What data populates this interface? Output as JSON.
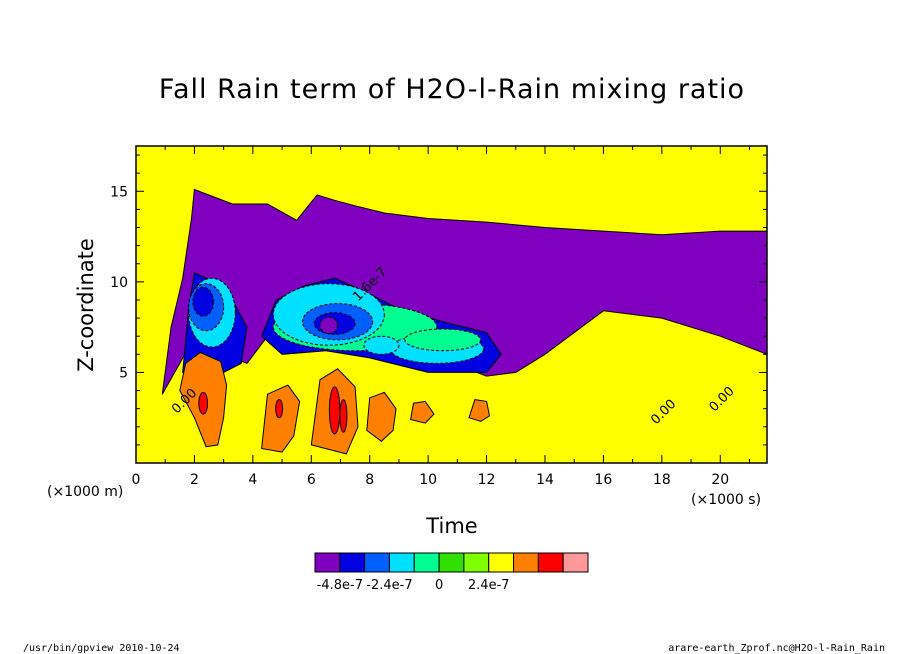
{
  "chart_data": {
    "type": "heatmap",
    "title": "Fall Rain term of H2O-l-Rain mixing ratio",
    "xlabel": "Time",
    "ylabel": "Z-coordinate",
    "x_unit": "(×1000 s)",
    "y_unit": "(×1000 m)",
    "xlim": [
      0,
      21.6
    ],
    "ylim": [
      0,
      17.5
    ],
    "x_ticks": [
      0,
      2,
      4,
      6,
      8,
      10,
      12,
      14,
      16,
      18,
      20
    ],
    "y_ticks": [
      5,
      10,
      15
    ],
    "colorbar": {
      "colors": [
        "#8000c0",
        "#0000e0",
        "#0060ff",
        "#00e0ff",
        "#00ff90",
        "#30e000",
        "#80ff00",
        "#ffff00",
        "#ff8000",
        "#ff0000",
        "#ff9898"
      ],
      "labels": [
        "-4.8e-7",
        "-2.4e-7",
        "0",
        "2.4e-7"
      ],
      "label_values": [
        -4.8e-07,
        -2.4e-07,
        0,
        2.4e-07
      ],
      "min": -6e-07,
      "step": 1.2e-07
    },
    "contour_labels": [
      "1.6e-7",
      "0.00",
      "0.00",
      "0.00"
    ],
    "regions": [
      {
        "level": 0,
        "shape": "polygon",
        "points": [
          [
            0.9,
            3.8
          ],
          [
            1.2,
            7.5
          ],
          [
            1.6,
            10.2
          ],
          [
            1.9,
            13.5
          ],
          [
            2.0,
            15.1
          ],
          [
            3.3,
            14.3
          ],
          [
            4.5,
            14.3
          ],
          [
            5.5,
            13.4
          ],
          [
            6.2,
            14.8
          ],
          [
            6.8,
            14.5
          ],
          [
            7.5,
            14.2
          ],
          [
            8.5,
            13.8
          ],
          [
            10,
            13.5
          ],
          [
            12,
            13.3
          ],
          [
            14,
            13.0
          ],
          [
            16,
            12.8
          ],
          [
            18,
            12.6
          ],
          [
            20,
            12.8
          ],
          [
            21.6,
            12.8
          ],
          [
            21.6,
            6.0
          ],
          [
            20,
            7.0
          ],
          [
            18,
            8.0
          ],
          [
            16,
            8.4
          ],
          [
            14,
            6.0
          ],
          [
            13,
            5.0
          ],
          [
            12,
            4.8
          ],
          [
            10,
            6.0
          ],
          [
            8,
            7.0
          ],
          [
            6.5,
            8.5
          ],
          [
            5.5,
            7.5
          ],
          [
            4.5,
            7.0
          ],
          [
            3.8,
            5.5
          ],
          [
            3.0,
            6.0
          ],
          [
            2.0,
            7.0
          ],
          [
            1.5,
            5.5
          ]
        ]
      },
      {
        "level": 1,
        "shape": "polygon",
        "points": [
          [
            1.6,
            5.0
          ],
          [
            1.8,
            8.5
          ],
          [
            2.0,
            10.5
          ],
          [
            2.7,
            10.0
          ],
          [
            3.3,
            9.0
          ],
          [
            3.8,
            7.5
          ],
          [
            3.6,
            5.5
          ],
          [
            3.0,
            5.0
          ],
          [
            2.2,
            4.5
          ]
        ]
      },
      {
        "level": 1,
        "shape": "polygon",
        "points": [
          [
            4.3,
            7.0
          ],
          [
            4.8,
            9.0
          ],
          [
            5.8,
            9.8
          ],
          [
            6.8,
            10.2
          ],
          [
            7.8,
            9.5
          ],
          [
            9,
            8.5
          ],
          [
            10.5,
            7.8
          ],
          [
            12,
            7.2
          ],
          [
            12.5,
            6.0
          ],
          [
            12,
            5.0
          ],
          [
            10,
            5.0
          ],
          [
            8,
            5.8
          ],
          [
            6.5,
            6.2
          ],
          [
            5.0,
            6.0
          ]
        ]
      },
      {
        "level": 3,
        "shape": "ellipse",
        "cx": 2.6,
        "cy": 8.3,
        "rx": 0.8,
        "ry": 1.9
      },
      {
        "level": 4,
        "shape": "ellipse",
        "cx": 7.5,
        "cy": 7.5,
        "rx": 2.8,
        "ry": 1.3
      },
      {
        "level": 3,
        "shape": "ellipse",
        "cx": 10.3,
        "cy": 6.3,
        "rx": 1.6,
        "ry": 0.8
      },
      {
        "level": 4,
        "shape": "ellipse",
        "cx": 10.5,
        "cy": 6.8,
        "rx": 1.3,
        "ry": 0.6
      },
      {
        "level": 3,
        "shape": "ellipse",
        "cx": 6.6,
        "cy": 8.2,
        "rx": 1.9,
        "ry": 1.7
      },
      {
        "level": 2,
        "shape": "ellipse",
        "cx": 2.4,
        "cy": 8.6,
        "rx": 0.6,
        "ry": 1.3
      },
      {
        "level": 2,
        "shape": "ellipse",
        "cx": 6.9,
        "cy": 7.8,
        "rx": 1.2,
        "ry": 1.0
      },
      {
        "level": 1,
        "shape": "ellipse",
        "cx": 2.3,
        "cy": 8.9,
        "rx": 0.35,
        "ry": 0.8
      },
      {
        "level": 1,
        "shape": "ellipse",
        "cx": 6.8,
        "cy": 7.7,
        "rx": 0.7,
        "ry": 0.6
      },
      {
        "level": 0,
        "shape": "ellipse",
        "cx": 6.6,
        "cy": 7.6,
        "rx": 0.3,
        "ry": 0.45
      },
      {
        "level": 3,
        "shape": "ellipse",
        "cx": 8.4,
        "cy": 6.5,
        "rx": 0.6,
        "ry": 0.5
      },
      {
        "level": 8,
        "shape": "polygon",
        "points": [
          [
            1.5,
            4.0
          ],
          [
            1.7,
            5.5
          ],
          [
            2.2,
            6.1
          ],
          [
            2.9,
            5.6
          ],
          [
            3.1,
            4.3
          ],
          [
            3.0,
            2.5
          ],
          [
            2.8,
            1.0
          ],
          [
            2.4,
            0.9
          ],
          [
            2.0,
            2.5
          ]
        ]
      },
      {
        "level": 8,
        "shape": "polygon",
        "points": [
          [
            4.3,
            0.8
          ],
          [
            4.5,
            3.8
          ],
          [
            5.2,
            4.3
          ],
          [
            5.6,
            3.4
          ],
          [
            5.4,
            1.5
          ],
          [
            5.0,
            0.6
          ]
        ]
      },
      {
        "level": 8,
        "shape": "polygon",
        "points": [
          [
            6.0,
            1.0
          ],
          [
            6.3,
            4.6
          ],
          [
            6.9,
            5.2
          ],
          [
            7.5,
            4.2
          ],
          [
            7.6,
            2.0
          ],
          [
            7.2,
            0.5
          ]
        ]
      },
      {
        "level": 8,
        "shape": "polygon",
        "points": [
          [
            7.9,
            1.8
          ],
          [
            8.0,
            3.6
          ],
          [
            8.5,
            3.9
          ],
          [
            8.9,
            3.0
          ],
          [
            8.8,
            1.8
          ],
          [
            8.4,
            1.2
          ]
        ]
      },
      {
        "level": 8,
        "shape": "polygon",
        "points": [
          [
            9.4,
            2.4
          ],
          [
            9.5,
            3.3
          ],
          [
            9.9,
            3.4
          ],
          [
            10.2,
            2.7
          ],
          [
            9.9,
            2.2
          ]
        ]
      },
      {
        "level": 8,
        "shape": "polygon",
        "points": [
          [
            11.4,
            2.5
          ],
          [
            11.6,
            3.5
          ],
          [
            12.0,
            3.4
          ],
          [
            12.1,
            2.6
          ],
          [
            11.8,
            2.3
          ]
        ]
      },
      {
        "level": 9,
        "shape": "ellipse",
        "cx": 6.8,
        "cy": 2.9,
        "rx": 0.18,
        "ry": 1.3
      },
      {
        "level": 9,
        "shape": "ellipse",
        "cx": 7.1,
        "cy": 2.6,
        "rx": 0.12,
        "ry": 0.9
      },
      {
        "level": 9,
        "shape": "ellipse",
        "cx": 2.3,
        "cy": 3.3,
        "rx": 0.15,
        "ry": 0.6
      },
      {
        "level": 9,
        "shape": "ellipse",
        "cx": 4.9,
        "cy": 3.0,
        "rx": 0.12,
        "ry": 0.5
      }
    ]
  },
  "footer": {
    "left": "/usr/bin/gpview   2010-10-24",
    "right": "arare-earth_Zprof.nc@H2O-l-Rain_Rain"
  }
}
